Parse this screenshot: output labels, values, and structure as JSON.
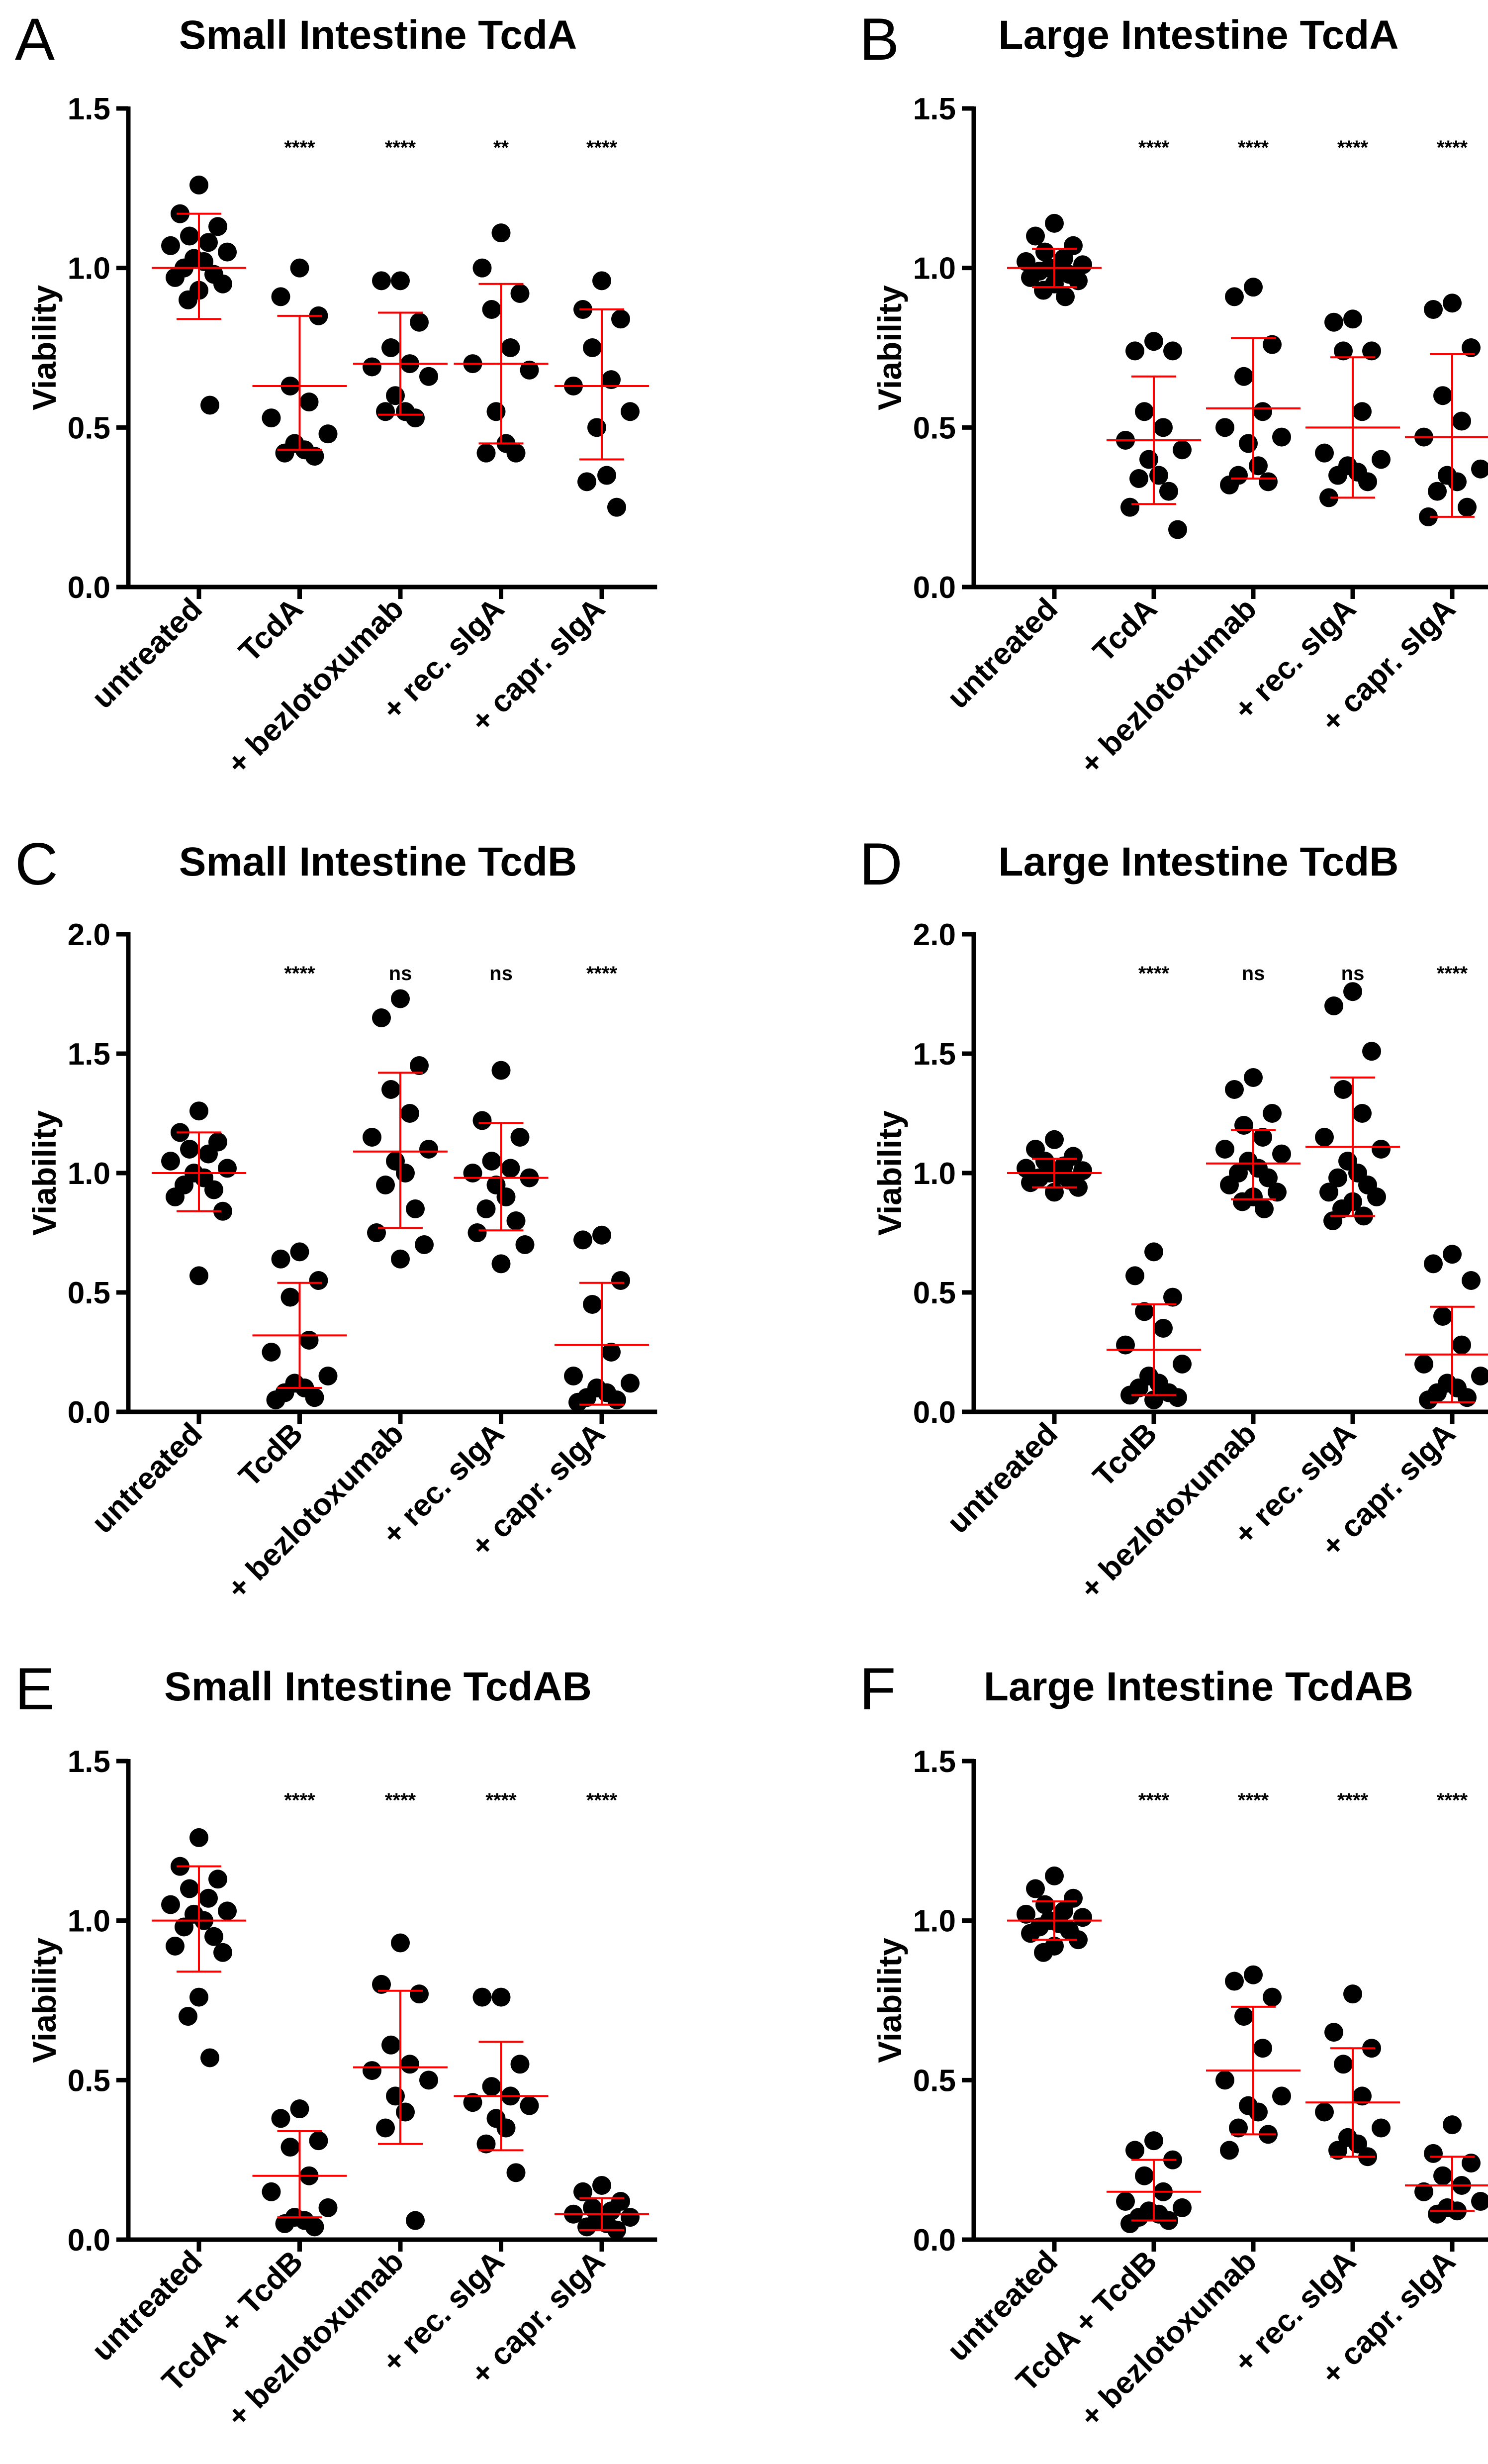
{
  "chart_data": [
    {
      "panel": "A",
      "type": "scatter",
      "title": "Small Intestine TcdA",
      "ylabel": "Viability",
      "ylim": [
        0,
        1.5
      ],
      "yticks": [
        0.0,
        0.5,
        1.0,
        1.5
      ],
      "ytick_labels": [
        "0.0",
        "0.5",
        "1.0",
        "1.5"
      ],
      "categories": [
        "untreated",
        "TcdA",
        "+ bezlotoxumab",
        "+ rec. sIgA",
        "+ capr. sIgA"
      ],
      "significance": [
        "",
        "****",
        "****",
        "**",
        "****"
      ],
      "series": [
        {
          "name": "untreated",
          "mean": 1.0,
          "sd_low": 0.84,
          "sd_high": 1.17,
          "values": [
            1.26,
            1.17,
            1.13,
            1.1,
            1.08,
            1.07,
            1.05,
            1.03,
            1.02,
            1.0,
            0.98,
            0.97,
            0.95,
            0.93,
            0.9,
            0.57
          ]
        },
        {
          "name": "TcdA",
          "mean": 0.63,
          "sd_low": 0.43,
          "sd_high": 0.85,
          "values": [
            1.0,
            0.91,
            0.85,
            0.63,
            0.58,
            0.53,
            0.48,
            0.45,
            0.43,
            0.42,
            0.41
          ]
        },
        {
          "name": "+ bezlotoxumab",
          "mean": 0.7,
          "sd_low": 0.54,
          "sd_high": 0.86,
          "values": [
            0.96,
            0.96,
            0.83,
            0.75,
            0.7,
            0.69,
            0.66,
            0.6,
            0.55,
            0.55,
            0.53
          ]
        },
        {
          "name": "+ rec. sIgA",
          "mean": 0.7,
          "sd_low": 0.45,
          "sd_high": 0.95,
          "values": [
            1.11,
            1.0,
            0.92,
            0.87,
            0.75,
            0.7,
            0.68,
            0.55,
            0.45,
            0.42,
            0.42
          ]
        },
        {
          "name": "+ capr. sIgA",
          "mean": 0.63,
          "sd_low": 0.4,
          "sd_high": 0.87,
          "values": [
            0.96,
            0.87,
            0.84,
            0.75,
            0.65,
            0.63,
            0.55,
            0.5,
            0.35,
            0.33,
            0.25
          ]
        }
      ]
    },
    {
      "panel": "B",
      "type": "scatter",
      "title": "Large Intestine TcdA",
      "ylabel": "Viability",
      "ylim": [
        0,
        1.5
      ],
      "yticks": [
        0.0,
        0.5,
        1.0,
        1.5
      ],
      "ytick_labels": [
        "0.0",
        "0.5",
        "1.0",
        "1.5"
      ],
      "categories": [
        "untreated",
        "TcdA",
        "+ bezlotoxumab",
        "+ rec. sIgA",
        "+ capr. sIgA"
      ],
      "significance": [
        "",
        "****",
        "****",
        "****",
        "****"
      ],
      "series": [
        {
          "name": "untreated",
          "mean": 1.0,
          "sd_low": 0.94,
          "sd_high": 1.06,
          "values": [
            1.14,
            1.1,
            1.07,
            1.05,
            1.03,
            1.02,
            1.01,
            1.0,
            1.0,
            0.99,
            0.98,
            0.97,
            0.96,
            0.95,
            0.93,
            0.91
          ]
        },
        {
          "name": "TcdA",
          "mean": 0.46,
          "sd_low": 0.26,
          "sd_high": 0.66,
          "values": [
            0.77,
            0.74,
            0.74,
            0.55,
            0.5,
            0.46,
            0.43,
            0.4,
            0.35,
            0.34,
            0.3,
            0.25,
            0.18
          ]
        },
        {
          "name": "+ bezlotoxumab",
          "mean": 0.56,
          "sd_low": 0.34,
          "sd_high": 0.78,
          "values": [
            0.94,
            0.91,
            0.76,
            0.66,
            0.55,
            0.5,
            0.47,
            0.45,
            0.38,
            0.35,
            0.33,
            0.32
          ]
        },
        {
          "name": "+ rec. sIgA",
          "mean": 0.5,
          "sd_low": 0.28,
          "sd_high": 0.72,
          "values": [
            0.84,
            0.83,
            0.74,
            0.74,
            0.55,
            0.42,
            0.4,
            0.38,
            0.36,
            0.35,
            0.33,
            0.28
          ]
        },
        {
          "name": "+ capr. sIgA",
          "mean": 0.47,
          "sd_low": 0.22,
          "sd_high": 0.73,
          "values": [
            0.89,
            0.87,
            0.75,
            0.6,
            0.52,
            0.47,
            0.37,
            0.35,
            0.33,
            0.3,
            0.25,
            0.22
          ]
        }
      ]
    },
    {
      "panel": "C",
      "type": "scatter",
      "title": "Small Intestine TcdB",
      "ylabel": "Viability",
      "ylim": [
        0,
        2.0
      ],
      "yticks": [
        0.0,
        0.5,
        1.0,
        1.5,
        2.0
      ],
      "ytick_labels": [
        "0.0",
        "0.5",
        "1.0",
        "1.5",
        "2.0"
      ],
      "categories": [
        "untreated",
        "TcdB",
        "+ bezlotoxumab",
        "+ rec. sIgA",
        "+ capr. sIgA"
      ],
      "significance": [
        "",
        "****",
        "ns",
        "ns",
        "****"
      ],
      "series": [
        {
          "name": "untreated",
          "mean": 1.0,
          "sd_low": 0.84,
          "sd_high": 1.17,
          "values": [
            1.26,
            1.17,
            1.13,
            1.1,
            1.08,
            1.05,
            1.02,
            1.0,
            0.98,
            0.95,
            0.93,
            0.9,
            0.84,
            0.57
          ]
        },
        {
          "name": "TcdB",
          "mean": 0.32,
          "sd_low": 0.1,
          "sd_high": 0.54,
          "values": [
            0.67,
            0.64,
            0.55,
            0.48,
            0.3,
            0.25,
            0.15,
            0.12,
            0.1,
            0.08,
            0.06,
            0.05
          ]
        },
        {
          "name": "+ bezlotoxumab",
          "mean": 1.09,
          "sd_low": 0.77,
          "sd_high": 1.42,
          "values": [
            1.73,
            1.65,
            1.45,
            1.35,
            1.25,
            1.15,
            1.1,
            1.05,
            1.0,
            0.95,
            0.85,
            0.75,
            0.7,
            0.64
          ]
        },
        {
          "name": "+ rec. sIgA",
          "mean": 0.98,
          "sd_low": 0.76,
          "sd_high": 1.21,
          "values": [
            1.43,
            1.22,
            1.15,
            1.05,
            1.02,
            1.0,
            0.98,
            0.95,
            0.9,
            0.85,
            0.8,
            0.75,
            0.7,
            0.62
          ]
        },
        {
          "name": "+ capr. sIgA",
          "mean": 0.28,
          "sd_low": 0.03,
          "sd_high": 0.54,
          "values": [
            0.74,
            0.72,
            0.55,
            0.45,
            0.25,
            0.15,
            0.12,
            0.1,
            0.08,
            0.06,
            0.05,
            0.04
          ]
        }
      ]
    },
    {
      "panel": "D",
      "type": "scatter",
      "title": "Large Intestine TcdB",
      "ylabel": "Viability",
      "ylim": [
        0,
        2.0
      ],
      "yticks": [
        0.0,
        0.5,
        1.0,
        1.5,
        2.0
      ],
      "ytick_labels": [
        "0.0",
        "0.5",
        "1.0",
        "1.5",
        "2.0"
      ],
      "categories": [
        "untreated",
        "TcdB",
        "+ bezlotoxumab",
        "+ rec. sIgA",
        "+ capr. sIgA"
      ],
      "significance": [
        "",
        "****",
        "ns",
        "ns",
        "****"
      ],
      "series": [
        {
          "name": "untreated",
          "mean": 1.0,
          "sd_low": 0.94,
          "sd_high": 1.06,
          "values": [
            1.14,
            1.1,
            1.07,
            1.05,
            1.03,
            1.02,
            1.01,
            1.0,
            0.99,
            0.98,
            0.97,
            0.96,
            0.94,
            0.92
          ]
        },
        {
          "name": "TcdB",
          "mean": 0.26,
          "sd_low": 0.07,
          "sd_high": 0.45,
          "values": [
            0.67,
            0.57,
            0.48,
            0.42,
            0.35,
            0.28,
            0.2,
            0.15,
            0.12,
            0.1,
            0.08,
            0.07,
            0.06,
            0.05
          ]
        },
        {
          "name": "+ bezlotoxumab",
          "mean": 1.04,
          "sd_low": 0.89,
          "sd_high": 1.18,
          "values": [
            1.4,
            1.35,
            1.25,
            1.2,
            1.15,
            1.1,
            1.08,
            1.05,
            1.02,
            1.0,
            0.98,
            0.95,
            0.92,
            0.9,
            0.88,
            0.85
          ]
        },
        {
          "name": "+ rec. sIgA",
          "mean": 1.11,
          "sd_low": 0.82,
          "sd_high": 1.4,
          "values": [
            1.76,
            1.7,
            1.51,
            1.35,
            1.25,
            1.15,
            1.1,
            1.05,
            1.0,
            0.98,
            0.95,
            0.92,
            0.9,
            0.88,
            0.85,
            0.82,
            0.8
          ]
        },
        {
          "name": "+ capr. sIgA",
          "mean": 0.24,
          "sd_low": 0.04,
          "sd_high": 0.44,
          "values": [
            0.66,
            0.62,
            0.55,
            0.4,
            0.28,
            0.2,
            0.15,
            0.12,
            0.1,
            0.08,
            0.06,
            0.05
          ]
        }
      ]
    },
    {
      "panel": "E",
      "type": "scatter",
      "title": "Small Intestine TcdAB",
      "ylabel": "Viability",
      "ylim": [
        0,
        1.5
      ],
      "yticks": [
        0.0,
        0.5,
        1.0,
        1.5
      ],
      "ytick_labels": [
        "0.0",
        "0.5",
        "1.0",
        "1.5"
      ],
      "categories": [
        "untreated",
        "TcdA + TcdB",
        "+ bezlotoxumab",
        "+ rec. sIgA",
        "+ capr. sIgA"
      ],
      "significance": [
        "",
        "****",
        "****",
        "****",
        "****"
      ],
      "series": [
        {
          "name": "untreated",
          "mean": 1.0,
          "sd_low": 0.84,
          "sd_high": 1.17,
          "values": [
            1.26,
            1.17,
            1.13,
            1.1,
            1.07,
            1.05,
            1.03,
            1.02,
            1.0,
            0.98,
            0.95,
            0.92,
            0.9,
            0.76,
            0.7,
            0.57
          ]
        },
        {
          "name": "TcdA + TcdB",
          "mean": 0.2,
          "sd_low": 0.07,
          "sd_high": 0.34,
          "values": [
            0.41,
            0.38,
            0.31,
            0.29,
            0.2,
            0.15,
            0.1,
            0.07,
            0.06,
            0.05,
            0.04
          ]
        },
        {
          "name": "+ bezlotoxumab",
          "mean": 0.54,
          "sd_low": 0.3,
          "sd_high": 0.78,
          "values": [
            0.93,
            0.8,
            0.77,
            0.61,
            0.55,
            0.53,
            0.5,
            0.45,
            0.4,
            0.35,
            0.06
          ]
        },
        {
          "name": "+ rec. sIgA",
          "mean": 0.45,
          "sd_low": 0.28,
          "sd_high": 0.62,
          "values": [
            0.76,
            0.76,
            0.55,
            0.48,
            0.45,
            0.43,
            0.42,
            0.38,
            0.35,
            0.3,
            0.21
          ]
        },
        {
          "name": "+ capr. sIgA",
          "mean": 0.08,
          "sd_low": 0.03,
          "sd_high": 0.13,
          "values": [
            0.17,
            0.15,
            0.12,
            0.1,
            0.09,
            0.08,
            0.07,
            0.06,
            0.05,
            0.04,
            0.03
          ]
        }
      ]
    },
    {
      "panel": "F",
      "type": "scatter",
      "title": "Large Intestine TcdAB",
      "ylabel": "Viability",
      "ylim": [
        0,
        1.5
      ],
      "yticks": [
        0.0,
        0.5,
        1.0,
        1.5
      ],
      "ytick_labels": [
        "0.0",
        "0.5",
        "1.0",
        "1.5"
      ],
      "categories": [
        "untreated",
        "TcdA + TcdB",
        "+ bezlotoxumab",
        "+ rec. sIgA",
        "+ capr. sIgA"
      ],
      "significance": [
        "",
        "****",
        "****",
        "****",
        "****"
      ],
      "series": [
        {
          "name": "untreated",
          "mean": 1.0,
          "sd_low": 0.94,
          "sd_high": 1.06,
          "values": [
            1.14,
            1.1,
            1.07,
            1.05,
            1.03,
            1.02,
            1.01,
            1.0,
            0.99,
            0.98,
            0.97,
            0.96,
            0.94,
            0.92,
            0.9
          ]
        },
        {
          "name": "TcdA + TcdB",
          "mean": 0.15,
          "sd_low": 0.06,
          "sd_high": 0.25,
          "values": [
            0.31,
            0.28,
            0.25,
            0.2,
            0.15,
            0.12,
            0.1,
            0.09,
            0.08,
            0.07,
            0.06,
            0.05
          ]
        },
        {
          "name": "+ bezlotoxumab",
          "mean": 0.53,
          "sd_low": 0.33,
          "sd_high": 0.73,
          "values": [
            0.83,
            0.81,
            0.76,
            0.7,
            0.6,
            0.5,
            0.45,
            0.42,
            0.4,
            0.35,
            0.33,
            0.28
          ]
        },
        {
          "name": "+ rec. sIgA",
          "mean": 0.43,
          "sd_low": 0.26,
          "sd_high": 0.6,
          "values": [
            0.77,
            0.65,
            0.6,
            0.55,
            0.45,
            0.4,
            0.35,
            0.32,
            0.3,
            0.28,
            0.26
          ]
        },
        {
          "name": "+ capr. sIgA",
          "mean": 0.17,
          "sd_low": 0.09,
          "sd_high": 0.26,
          "values": [
            0.36,
            0.27,
            0.24,
            0.2,
            0.17,
            0.15,
            0.12,
            0.1,
            0.09,
            0.08
          ]
        }
      ]
    }
  ]
}
